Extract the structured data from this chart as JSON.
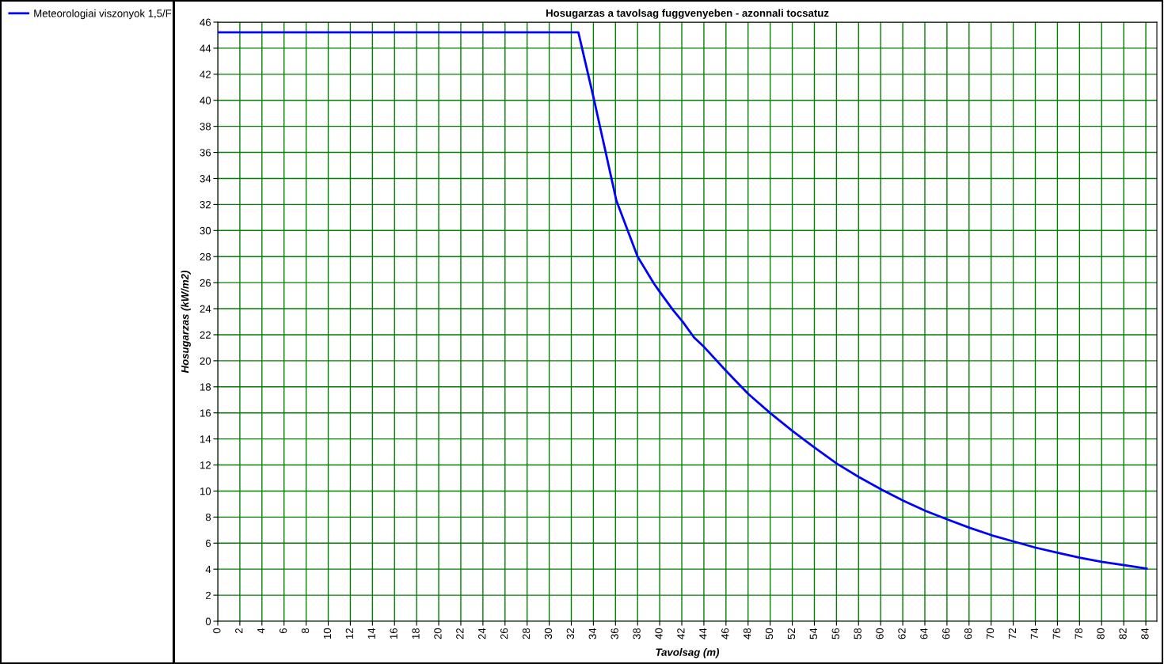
{
  "chart_data": {
    "type": "line",
    "title": "Hosugarzas a tavolsag fuggvenyeben - azonnali tocsatuz",
    "xlabel": "Tavolsag (m)",
    "ylabel": "Hosugarzas (kW/m2)",
    "series": [
      {
        "name": "Meteorologiai viszonyok 1,5/F",
        "color": "#0000ff",
        "x": [
          0,
          32.64,
          34.08,
          36.08,
          38.0,
          39.5,
          40.0,
          41.2,
          42.1,
          43.1,
          44.03,
          46.0,
          48.0,
          50.0,
          52.0,
          54.05,
          56.04,
          58.06,
          60.1,
          62.1,
          64.1,
          66.07,
          68.1,
          70.1,
          72.05,
          74.03,
          76.0,
          78.0,
          80.0,
          82.06,
          84.07
        ],
        "values": [
          45.22,
          45.22,
          39.96,
          32.3,
          28.0,
          25.9,
          25.3,
          23.9,
          22.98,
          21.8,
          21.05,
          19.23,
          17.47,
          15.99,
          14.62,
          13.32,
          12.1,
          11.06,
          10.1,
          9.24,
          8.46,
          7.81,
          7.16,
          6.59,
          6.12,
          5.65,
          5.27,
          4.88,
          4.57,
          4.31,
          4.05
        ]
      }
    ],
    "xlim": [
      0,
      85
    ],
    "xticks": [
      0,
      2,
      4,
      6,
      8,
      10,
      12,
      14,
      16,
      18,
      20,
      22,
      24,
      26,
      28,
      30,
      32,
      34,
      36,
      38,
      40,
      42,
      44,
      46,
      48,
      50,
      52,
      54,
      56,
      58,
      60,
      62,
      64,
      66,
      68,
      70,
      72,
      74,
      76,
      78,
      80,
      82,
      84
    ],
    "ylim": [
      0,
      46
    ],
    "yticks": [
      0,
      2,
      4,
      6,
      8,
      10,
      12,
      14,
      16,
      18,
      20,
      22,
      24,
      26,
      28,
      30,
      32,
      34,
      36,
      38,
      40,
      42,
      44,
      46
    ],
    "grid": true,
    "legend": "left",
    "marker": "none",
    "line_style": "solid"
  }
}
